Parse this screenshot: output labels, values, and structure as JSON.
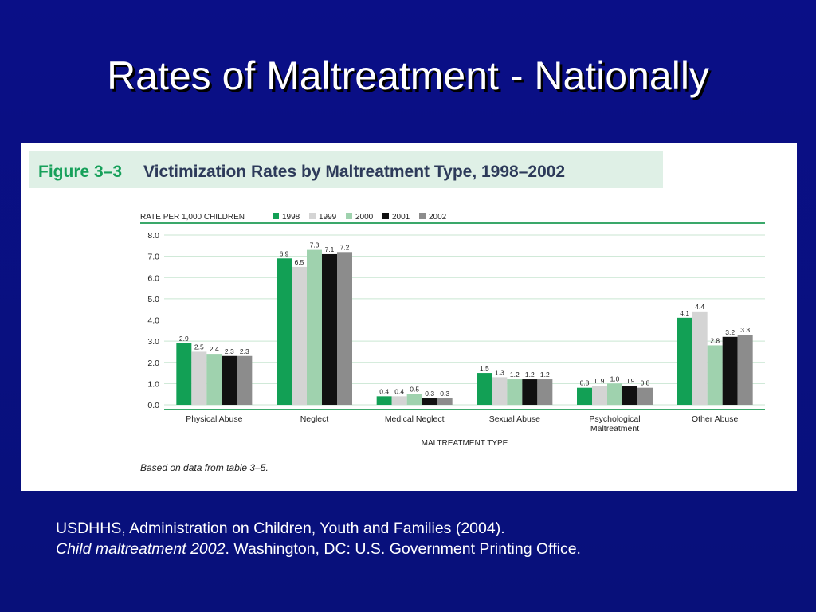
{
  "slide": {
    "title": "Rates of Maltreatment - Nationally"
  },
  "figure": {
    "number": "Figure 3–3",
    "title": "Victimization Rates by Maltreatment Type, 1998–2002",
    "source_note": "Based on data from table 3–5."
  },
  "citation": {
    "line1": "USDHHS, Administration on Children, Youth and Families (2004).",
    "line2_title": "Child maltreatment 2002",
    "line2_rest": ". Washington, DC:  U.S. Government Printing Office."
  },
  "colors": {
    "background": "#0a0f87",
    "accent_green": "#16a05a",
    "grid_green": "#c9e6d2"
  },
  "chart_data": {
    "type": "bar",
    "title": "Victimization Rates by Maltreatment Type, 1998–2002",
    "ylabel": "RATE PER 1,000 CHILDREN",
    "xlabel": "MALTREATMENT TYPE",
    "ylim": [
      0,
      8
    ],
    "yticks": [
      "0.0",
      "1.0",
      "2.0",
      "3.0",
      "4.0",
      "5.0",
      "6.0",
      "7.0",
      "8.0"
    ],
    "grid": true,
    "legend_position": "top",
    "categories": [
      [
        "Physical Abuse"
      ],
      [
        "Neglect"
      ],
      [
        "Medical Neglect"
      ],
      [
        "Sexual Abuse"
      ],
      [
        "Psychological",
        "Maltreatment"
      ],
      [
        "Other Abuse"
      ]
    ],
    "series": [
      {
        "name": "1998",
        "color": "#12a055",
        "values": [
          2.9,
          6.9,
          0.4,
          1.5,
          0.8,
          4.1
        ]
      },
      {
        "name": "1999",
        "color": "#d4d4d4",
        "values": [
          2.5,
          6.5,
          0.4,
          1.3,
          0.9,
          4.4
        ]
      },
      {
        "name": "2000",
        "color": "#9fd2ae",
        "values": [
          2.4,
          7.3,
          0.5,
          1.2,
          1.0,
          2.8
        ]
      },
      {
        "name": "2001",
        "color": "#111111",
        "values": [
          2.3,
          7.1,
          0.3,
          1.2,
          0.9,
          3.2
        ]
      },
      {
        "name": "2002",
        "color": "#8c8c8c",
        "values": [
          2.3,
          7.2,
          0.3,
          1.2,
          0.8,
          3.3
        ]
      }
    ]
  }
}
